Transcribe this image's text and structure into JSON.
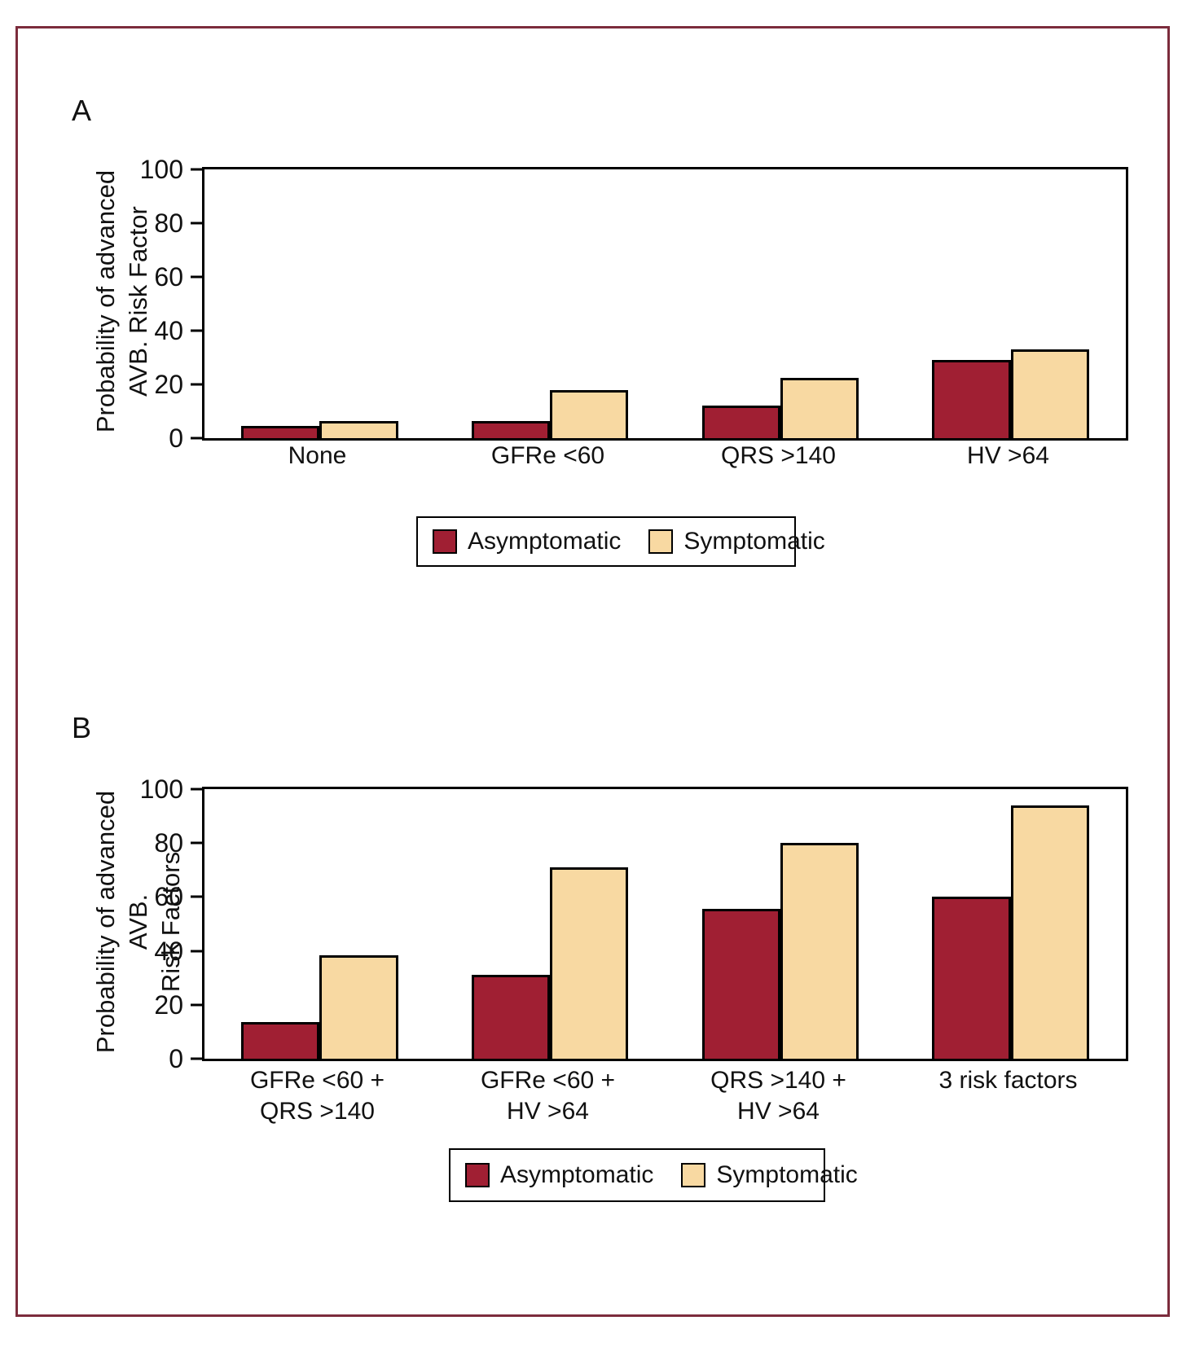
{
  "colors": {
    "asymptomatic": "#A01F33",
    "symptomatic": "#F8D9A2",
    "frame_border": "#7C2C3C",
    "axis": "#000000"
  },
  "legend": {
    "asymptomatic_label": "Asymptomatic",
    "symptomatic_label": "Symptomatic"
  },
  "chart_data": [
    {
      "type": "bar",
      "panel": "A",
      "ylabel": "Probability of advanced\nAVB. Risk Factor",
      "ylim": [
        0,
        100
      ],
      "yticks": [
        0,
        20,
        40,
        60,
        80,
        100
      ],
      "grid": false,
      "legend_position": "below",
      "categories": [
        "None",
        "GFRe <60",
        "QRS >140",
        "HV >64"
      ],
      "series": [
        {
          "name": "Asymptomatic",
          "values": [
            4.5,
            6.5,
            12,
            29
          ]
        },
        {
          "name": "Symptomatic",
          "values": [
            6.5,
            18,
            22.5,
            33
          ]
        }
      ]
    },
    {
      "type": "bar",
      "panel": "B",
      "ylabel": "Probability of advanced AVB.\nRisk Factors",
      "ylim": [
        0,
        100
      ],
      "yticks": [
        0,
        20,
        40,
        60,
        80,
        100
      ],
      "grid": false,
      "legend_position": "below",
      "categories": [
        "GFRe <60 +\nQRS >140",
        "GFRe <60 +\nHV >64",
        "QRS >140 +\nHV >64",
        "3 risk factors"
      ],
      "series": [
        {
          "name": "Asymptomatic",
          "values": [
            13.5,
            31,
            55.5,
            60
          ]
        },
        {
          "name": "Symptomatic",
          "values": [
            38.5,
            71,
            80,
            94
          ]
        }
      ]
    }
  ]
}
